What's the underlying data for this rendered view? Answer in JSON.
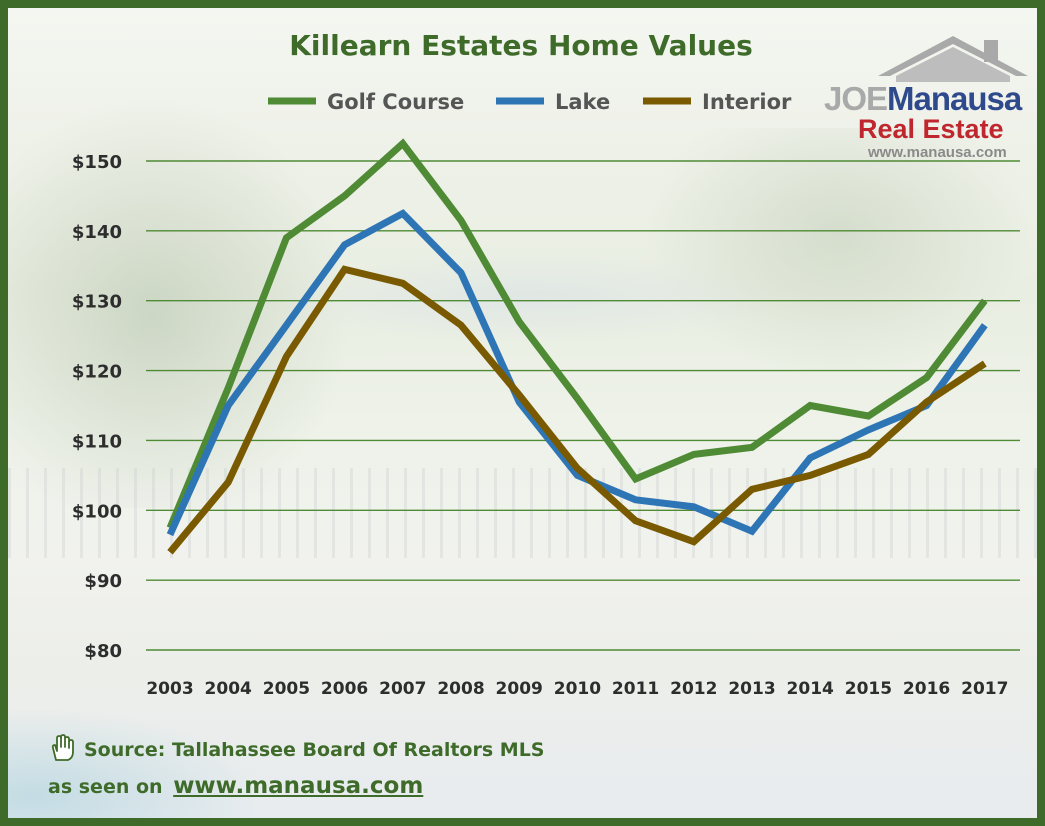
{
  "chart_data": {
    "type": "line",
    "title": "Killearn Estates Home Values",
    "xlabel": "",
    "ylabel": "",
    "x": [
      "2003",
      "2004",
      "2005",
      "2006",
      "2007",
      "2008",
      "2009",
      "2010",
      "2011",
      "2012",
      "2013",
      "2014",
      "2015",
      "2016",
      "2017"
    ],
    "ylim": [
      80,
      150
    ],
    "yticks": [
      80,
      90,
      100,
      110,
      120,
      130,
      140,
      150
    ],
    "ytick_labels": [
      "$80",
      "$90",
      "$100",
      "$110",
      "$120",
      "$130",
      "$140",
      "$150"
    ],
    "grid": "horizontal",
    "legend_position": "top-center",
    "series": [
      {
        "name": "Golf Course",
        "color": "#4f8a34",
        "values": [
          97.5,
          117.5,
          139,
          145,
          152.5,
          141.5,
          127,
          116,
          104.5,
          108,
          109,
          115,
          113.5,
          119,
          130
        ]
      },
      {
        "name": "Lake",
        "color": "#2e75b6",
        "values": [
          96.5,
          115,
          126.5,
          138,
          142.5,
          134,
          115.5,
          105,
          101.5,
          100.5,
          97,
          107.5,
          111.5,
          115,
          126.5
        ]
      },
      {
        "name": "Interior",
        "color": "#7a5a00",
        "values": [
          94,
          104,
          122,
          134.5,
          132.5,
          126.5,
          116.5,
          106,
          98.5,
          95.5,
          103,
          105,
          108,
          115.5,
          121
        ]
      }
    ],
    "colors": {
      "grid": "#4f8a34",
      "text": "#2d2d2d",
      "title": "#3f6b2a"
    }
  },
  "logo": {
    "joe": "JOE",
    "manausa": "Manausa",
    "real_estate": "Real Estate",
    "url": "www.manausa.com"
  },
  "footer": {
    "source": "Source: Tallahassee Board Of Realtors MLS",
    "seen_on": "as seen on",
    "url": "www.manausa.com",
    "icon": "pointing-hand-icon"
  }
}
